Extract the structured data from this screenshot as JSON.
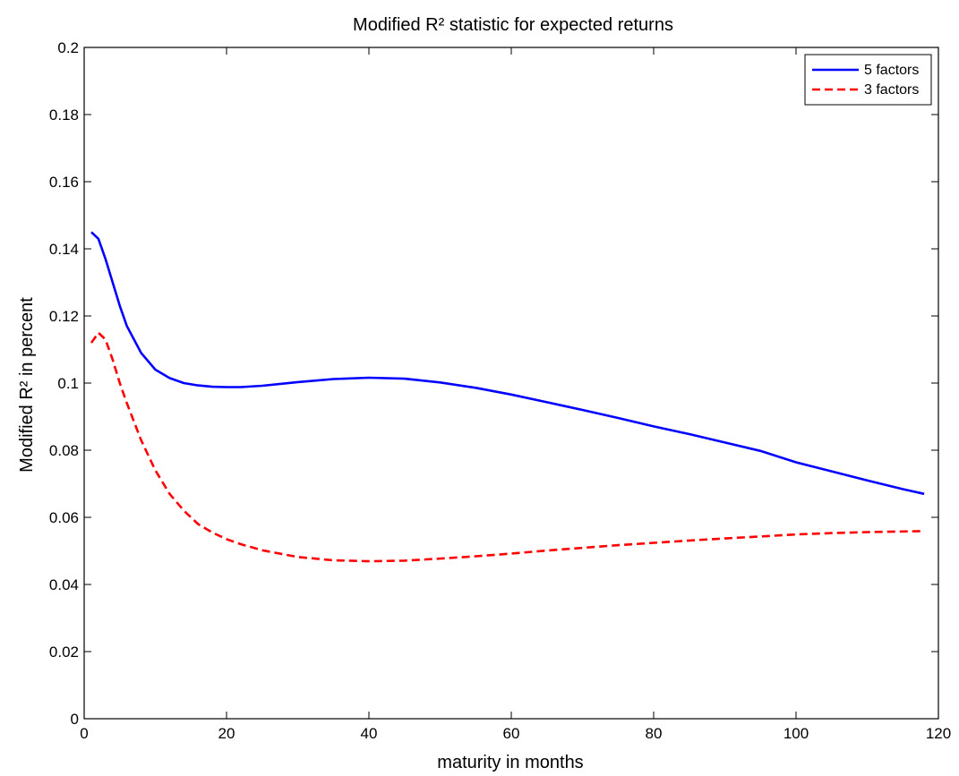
{
  "chart_data": {
    "type": "line",
    "title": "Modified R² statistic for expected returns",
    "xlabel": "maturity in months",
    "ylabel": "Modified R² in percent",
    "xlim": [
      0,
      120
    ],
    "ylim": [
      0,
      0.2
    ],
    "xticks": [
      0,
      20,
      40,
      60,
      80,
      100,
      120
    ],
    "yticks": [
      0,
      0.02,
      0.04,
      0.06,
      0.08,
      0.1,
      0.12,
      0.14,
      0.16,
      0.18,
      0.2
    ],
    "grid": false,
    "legend_position": "top-right",
    "series": [
      {
        "name": "5 factors",
        "color": "#0000ff",
        "style": "solid",
        "x": [
          1,
          2,
          3,
          4,
          5,
          6,
          8,
          10,
          12,
          14,
          16,
          18,
          20,
          22,
          25,
          30,
          35,
          40,
          45,
          50,
          55,
          60,
          65,
          70,
          75,
          80,
          85,
          90,
          95,
          100,
          105,
          110,
          115,
          118
        ],
        "y": [
          0.145,
          0.143,
          0.137,
          0.13,
          0.123,
          0.117,
          0.109,
          0.104,
          0.1015,
          0.1,
          0.0993,
          0.0989,
          0.0988,
          0.0988,
          0.0992,
          0.1003,
          0.1012,
          0.1016,
          0.1013,
          0.1002,
          0.0986,
          0.0966,
          0.0943,
          0.092,
          0.0896,
          0.0871,
          0.0848,
          0.0823,
          0.0798,
          0.0764,
          0.0737,
          0.071,
          0.0684,
          0.067
        ]
      },
      {
        "name": "3 factors",
        "color": "#ff0000",
        "style": "dashed",
        "x": [
          1,
          2,
          3,
          4,
          5,
          6,
          8,
          10,
          12,
          14,
          16,
          18,
          20,
          22,
          25,
          30,
          35,
          40,
          45,
          50,
          55,
          60,
          65,
          70,
          75,
          80,
          85,
          90,
          95,
          100,
          105,
          110,
          115,
          118
        ],
        "y": [
          0.112,
          0.115,
          0.113,
          0.107,
          0.1,
          0.094,
          0.083,
          0.074,
          0.067,
          0.062,
          0.058,
          0.0555,
          0.0535,
          0.052,
          0.0502,
          0.0482,
          0.0472,
          0.0469,
          0.0471,
          0.0477,
          0.0484,
          0.0492,
          0.0501,
          0.0509,
          0.0517,
          0.0524,
          0.0531,
          0.0537,
          0.0543,
          0.0549,
          0.0553,
          0.0556,
          0.0558,
          0.0559
        ]
      }
    ]
  }
}
